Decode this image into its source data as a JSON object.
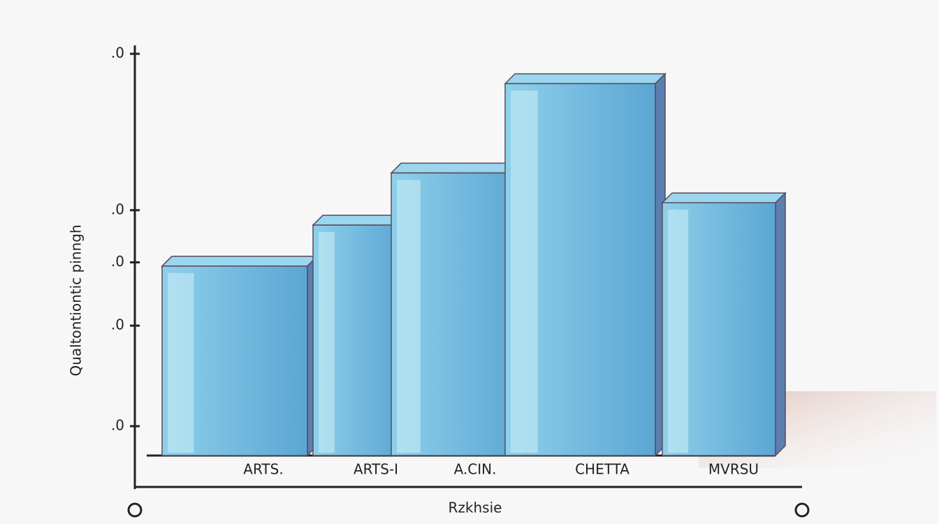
{
  "chart_data": {
    "type": "bar3d",
    "ylabel": "Qualtontiontic pinngh",
    "xlabel": "Rzkhsie",
    "categories": [
      "ARTS.",
      "ARTS-I",
      "A.CIN.",
      "CHETTA",
      "MVRSU"
    ],
    "values": [
      43,
      54,
      68,
      92,
      60
    ],
    "color": "#72bfe0",
    "ylim": [
      0,
      100
    ],
    "yticks": [
      {
        "value": 0,
        "label": ".0"
      },
      {
        "value": 27,
        "label": ".0"
      },
      {
        "value": 44,
        "label": ".0"
      },
      {
        "value": 58,
        "label": ".0"
      },
      {
        "value": 100,
        "label": ".0"
      }
    ]
  }
}
